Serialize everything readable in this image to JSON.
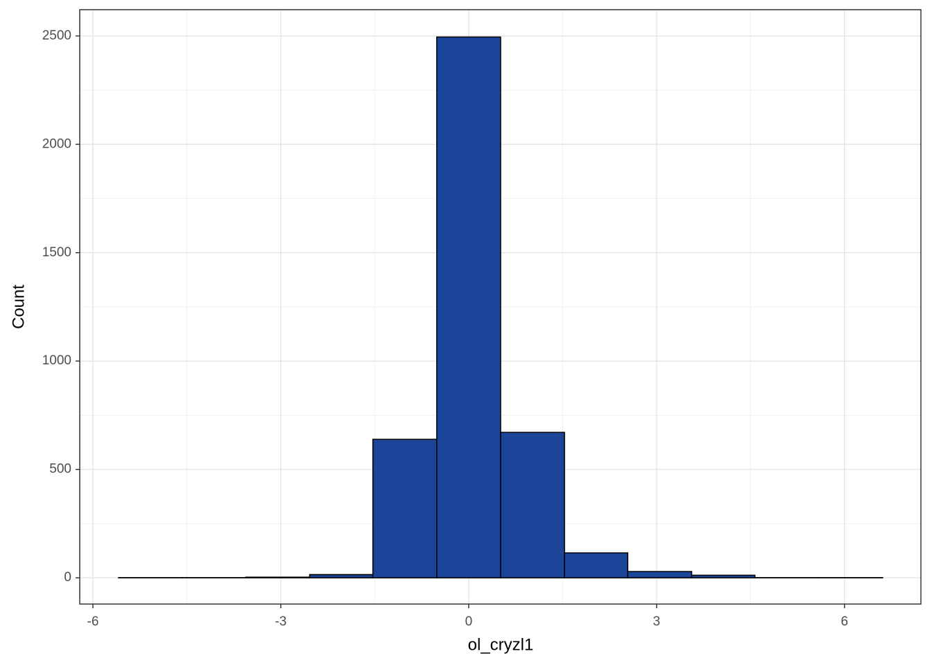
{
  "chart_data": {
    "type": "histogram",
    "x_label": "ol_cryzl1",
    "y_label": "Count",
    "bins": [
      -5.59,
      -4.57,
      -3.56,
      -2.54,
      -1.53,
      -0.51,
      0.51,
      1.53,
      2.54,
      3.56,
      4.57,
      5.59,
      6.61
    ],
    "values": [
      1,
      1,
      3,
      15,
      639,
      2495,
      671,
      115,
      29,
      12,
      1,
      1
    ],
    "color": "#1a4599",
    "edgecolor": "#000000",
    "xlim": [
      -6.21,
      7.22
    ],
    "xticks": [
      -6,
      -3,
      0,
      3,
      6
    ],
    "ylim": [
      -121,
      2621
    ],
    "yticks": [
      0,
      500,
      1000,
      1500,
      2000,
      2500
    ],
    "grid": true,
    "minor_grid": true
  }
}
